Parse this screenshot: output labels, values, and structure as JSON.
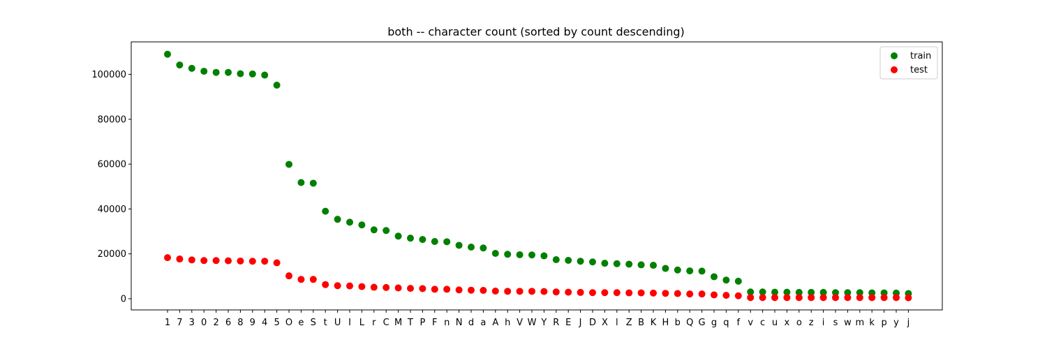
{
  "chart_data": {
    "type": "scatter",
    "title": "both -- character count (sorted by count descending)",
    "xlabel": "",
    "ylabel": "",
    "ylim": [
      -5000,
      114500
    ],
    "yticks": [
      0,
      20000,
      40000,
      60000,
      80000,
      100000
    ],
    "ytick_labels": [
      "0",
      "20000",
      "40000",
      "60000",
      "80000",
      "100000"
    ],
    "grid": false,
    "legend_position": "top-right",
    "categories": [
      "1",
      "7",
      "3",
      "0",
      "2",
      "6",
      "8",
      "9",
      "4",
      "5",
      "O",
      "e",
      "S",
      "t",
      "U",
      "I",
      "L",
      "r",
      "C",
      "M",
      "T",
      "P",
      "F",
      "n",
      "N",
      "d",
      "a",
      "A",
      "h",
      "V",
      "W",
      "Y",
      "R",
      "E",
      "J",
      "D",
      "X",
      "l",
      "Z",
      "B",
      "K",
      "H",
      "b",
      "Q",
      "G",
      "g",
      "q",
      "f",
      "v",
      "c",
      "u",
      "x",
      "o",
      "z",
      "i",
      "s",
      "w",
      "m",
      "k",
      "p",
      "y",
      "j"
    ],
    "series": [
      {
        "name": "train",
        "color": "#008000",
        "values": [
          109000,
          104200,
          102700,
          101400,
          100900,
          100900,
          100300,
          100200,
          99700,
          95200,
          59900,
          51800,
          51500,
          39000,
          35400,
          34100,
          32900,
          30700,
          30400,
          27900,
          27000,
          26400,
          25500,
          25400,
          23800,
          23000,
          22600,
          20200,
          19800,
          19600,
          19500,
          19100,
          17400,
          17100,
          16700,
          16400,
          15800,
          15600,
          15400,
          15100,
          14900,
          13500,
          12800,
          12400,
          12300,
          9800,
          8300,
          7800,
          3000,
          3000,
          2900,
          2900,
          2800,
          2800,
          2800,
          2700,
          2700,
          2700,
          2600,
          2600,
          2500,
          2300
        ]
      },
      {
        "name": "test",
        "color": "#ff0000",
        "values": [
          18300,
          17700,
          17300,
          17000,
          17000,
          16900,
          16800,
          16700,
          16700,
          16000,
          10200,
          8600,
          8600,
          6300,
          5800,
          5700,
          5400,
          5100,
          5000,
          4800,
          4600,
          4500,
          4200,
          4200,
          3900,
          3800,
          3700,
          3400,
          3300,
          3300,
          3300,
          3200,
          3000,
          2900,
          2800,
          2700,
          2700,
          2700,
          2600,
          2600,
          2500,
          2400,
          2300,
          2100,
          2100,
          1700,
          1500,
          1300,
          500,
          500,
          500,
          500,
          500,
          500,
          500,
          500,
          500,
          500,
          500,
          500,
          500,
          400
        ]
      }
    ]
  }
}
